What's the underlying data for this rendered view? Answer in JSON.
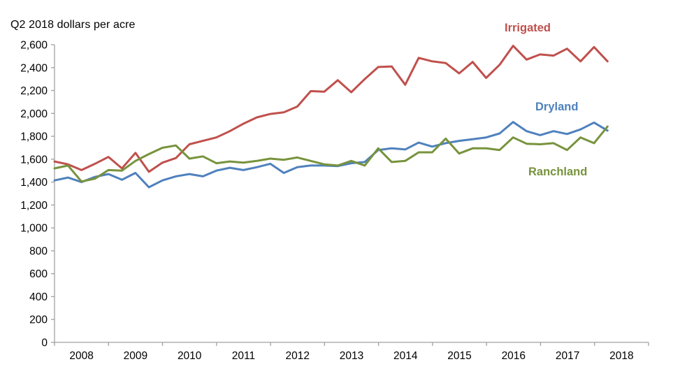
{
  "chart_data": {
    "type": "line",
    "title": "Q2 2018 dollars per acre",
    "x_unit": "quarter",
    "x_start": "2008 Q1",
    "x_end": "2018 Q2",
    "x_tick_years": [
      "2008",
      "2009",
      "2010",
      "2011",
      "2012",
      "2013",
      "2014",
      "2015",
      "2016",
      "2017",
      "2018"
    ],
    "y_axis": {
      "min": 0,
      "max": 2600,
      "step": 200,
      "format": "thousands-comma"
    },
    "grid": false,
    "legend_position": "inline-labels-right",
    "series": [
      {
        "name": "Irrigated",
        "color": "#C0504D",
        "values": [
          1580,
          1555,
          1505,
          1560,
          1620,
          1520,
          1655,
          1490,
          1570,
          1610,
          1730,
          1760,
          1790,
          1845,
          1910,
          1965,
          1995,
          2010,
          2060,
          2195,
          2190,
          2290,
          2185,
          2300,
          2405,
          2410,
          2250,
          2485,
          2455,
          2440,
          2350,
          2450,
          2310,
          2425,
          2590,
          2470,
          2515,
          2505,
          2565,
          2455,
          2580,
          2455
        ]
      },
      {
        "name": "Dryland",
        "color": "#4F81BD",
        "values": [
          1415,
          1440,
          1400,
          1445,
          1470,
          1420,
          1480,
          1355,
          1415,
          1450,
          1470,
          1450,
          1500,
          1525,
          1505,
          1530,
          1560,
          1480,
          1530,
          1545,
          1545,
          1540,
          1565,
          1575,
          1680,
          1695,
          1685,
          1745,
          1710,
          1740,
          1760,
          1775,
          1790,
          1825,
          1925,
          1845,
          1810,
          1845,
          1820,
          1860,
          1920,
          1850
        ]
      },
      {
        "name": "Ranchland",
        "color": "#77933C",
        "values": [
          1520,
          1545,
          1405,
          1430,
          1505,
          1500,
          1585,
          1645,
          1700,
          1720,
          1605,
          1625,
          1565,
          1580,
          1570,
          1585,
          1605,
          1595,
          1615,
          1585,
          1555,
          1545,
          1585,
          1545,
          1695,
          1575,
          1585,
          1660,
          1660,
          1780,
          1650,
          1695,
          1695,
          1680,
          1790,
          1735,
          1730,
          1740,
          1680,
          1790,
          1740,
          1885
        ]
      }
    ]
  },
  "style": {
    "axis_color": "#A0A0A0",
    "text_color": "#000000",
    "background": "#FFFFFF"
  }
}
